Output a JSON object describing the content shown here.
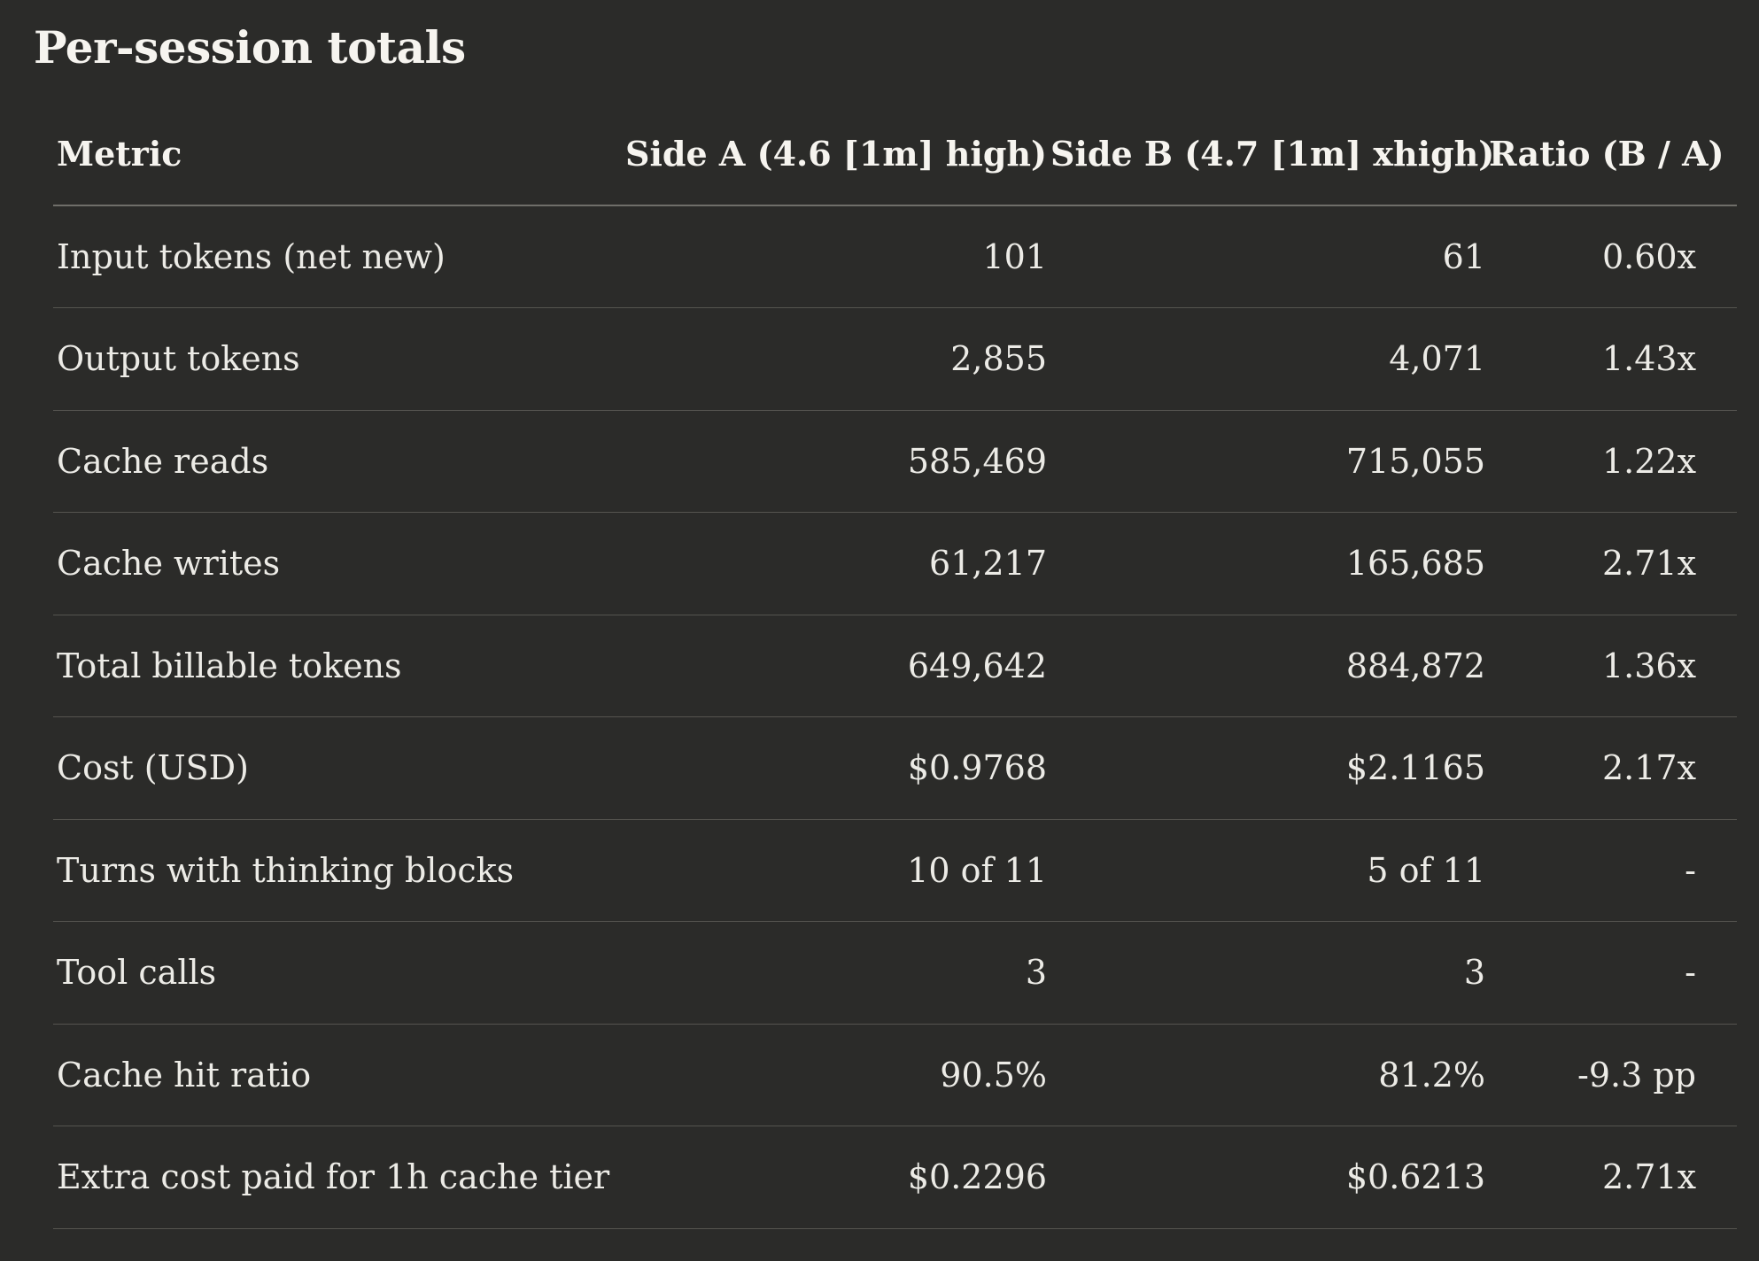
{
  "title": "Per-session totals",
  "table": {
    "headers": {
      "metric": "Metric",
      "side_a": "Side A (4.6 [1m] high)",
      "side_b": "Side B (4.7 [1m] xhigh)",
      "ratio": "Ratio (B / A)"
    },
    "rows": [
      {
        "metric": "Input tokens (net new)",
        "side_a": "101",
        "side_b": "61",
        "ratio": "0.60x"
      },
      {
        "metric": "Output tokens",
        "side_a": "2,855",
        "side_b": "4,071",
        "ratio": "1.43x"
      },
      {
        "metric": "Cache reads",
        "side_a": "585,469",
        "side_b": "715,055",
        "ratio": "1.22x"
      },
      {
        "metric": "Cache writes",
        "side_a": "61,217",
        "side_b": "165,685",
        "ratio": "2.71x"
      },
      {
        "metric": "Total billable tokens",
        "side_a": "649,642",
        "side_b": "884,872",
        "ratio": "1.36x"
      },
      {
        "metric": "Cost (USD)",
        "side_a": "$0.9768",
        "side_b": "$2.1165",
        "ratio": "2.17x"
      },
      {
        "metric": "Turns with thinking blocks",
        "side_a": "10 of 11",
        "side_b": "5 of 11",
        "ratio": "-"
      },
      {
        "metric": "Tool calls",
        "side_a": "3",
        "side_b": "3",
        "ratio": "-"
      },
      {
        "metric": "Cache hit ratio",
        "side_a": "90.5%",
        "side_b": "81.2%",
        "ratio": "-9.3 pp"
      },
      {
        "metric": "Extra cost paid for 1h cache tier",
        "side_a": "$0.2296",
        "side_b": "$0.6213",
        "ratio": "2.71x"
      }
    ]
  }
}
